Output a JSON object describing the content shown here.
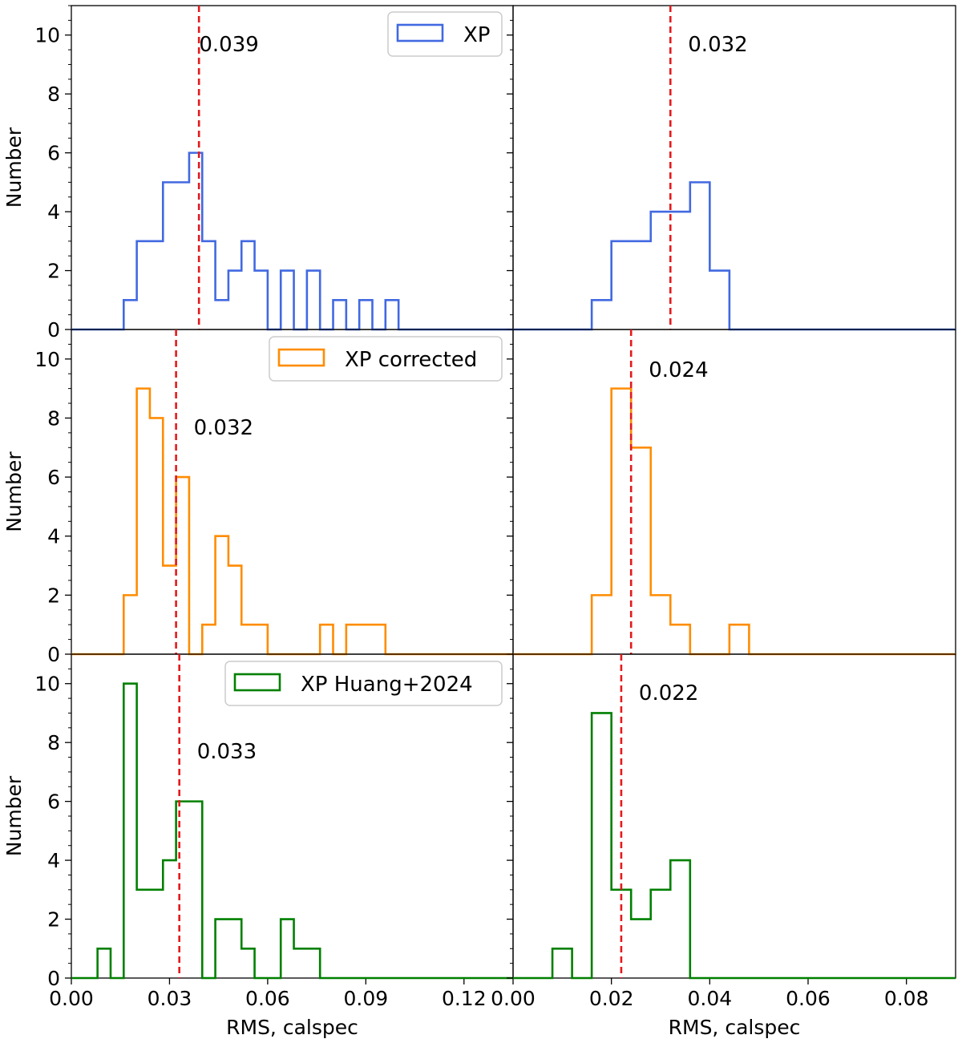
{
  "chart_data": [
    {
      "type": "histogram",
      "panel": "top-left",
      "ylabel": "Number",
      "xlim": [
        0,
        0.135
      ],
      "ylim": [
        0,
        11
      ],
      "color": "#4169e1",
      "legend": "XP",
      "legend_position": "top-right",
      "median": 0.039,
      "median_label": "0.039",
      "bin_width": 0.004,
      "bins": [
        {
          "x": 0.016,
          "count": 1
        },
        {
          "x": 0.02,
          "count": 3
        },
        {
          "x": 0.024,
          "count": 3
        },
        {
          "x": 0.028,
          "count": 5
        },
        {
          "x": 0.032,
          "count": 5
        },
        {
          "x": 0.036,
          "count": 6
        },
        {
          "x": 0.04,
          "count": 3
        },
        {
          "x": 0.044,
          "count": 1
        },
        {
          "x": 0.048,
          "count": 2
        },
        {
          "x": 0.052,
          "count": 3
        },
        {
          "x": 0.056,
          "count": 2
        },
        {
          "x": 0.06,
          "count": 0
        },
        {
          "x": 0.064,
          "count": 2
        },
        {
          "x": 0.068,
          "count": 0
        },
        {
          "x": 0.072,
          "count": 2
        },
        {
          "x": 0.076,
          "count": 0
        },
        {
          "x": 0.08,
          "count": 1
        },
        {
          "x": 0.084,
          "count": 0
        },
        {
          "x": 0.088,
          "count": 1
        },
        {
          "x": 0.092,
          "count": 0
        },
        {
          "x": 0.096,
          "count": 1
        }
      ]
    },
    {
      "type": "histogram",
      "panel": "top-right",
      "xlim": [
        0,
        0.09
      ],
      "ylim": [
        0,
        11
      ],
      "color": "#4169e1",
      "median": 0.032,
      "median_label": "0.032",
      "bin_width": 0.004,
      "bins": [
        {
          "x": 0.016,
          "count": 1
        },
        {
          "x": 0.02,
          "count": 3
        },
        {
          "x": 0.024,
          "count": 3
        },
        {
          "x": 0.028,
          "count": 4
        },
        {
          "x": 0.032,
          "count": 4
        },
        {
          "x": 0.036,
          "count": 5
        },
        {
          "x": 0.04,
          "count": 2
        }
      ]
    },
    {
      "type": "histogram",
      "panel": "middle-left",
      "ylabel": "Number",
      "xlim": [
        0,
        0.135
      ],
      "ylim": [
        0,
        11
      ],
      "color": "#ff8c00",
      "legend": "XP corrected",
      "legend_position": "top-right",
      "median": 0.032,
      "median_label": "0.032",
      "bin_width": 0.004,
      "bins": [
        {
          "x": 0.016,
          "count": 2
        },
        {
          "x": 0.02,
          "count": 9
        },
        {
          "x": 0.024,
          "count": 8
        },
        {
          "x": 0.028,
          "count": 3
        },
        {
          "x": 0.032,
          "count": 6
        },
        {
          "x": 0.036,
          "count": 0
        },
        {
          "x": 0.04,
          "count": 1
        },
        {
          "x": 0.044,
          "count": 4
        },
        {
          "x": 0.048,
          "count": 3
        },
        {
          "x": 0.052,
          "count": 1
        },
        {
          "x": 0.056,
          "count": 1
        },
        {
          "x": 0.06,
          "count": 0
        },
        {
          "x": 0.064,
          "count": 0
        },
        {
          "x": 0.068,
          "count": 0
        },
        {
          "x": 0.072,
          "count": 0
        },
        {
          "x": 0.076,
          "count": 1
        },
        {
          "x": 0.08,
          "count": 0
        },
        {
          "x": 0.084,
          "count": 1
        },
        {
          "x": 0.088,
          "count": 1
        },
        {
          "x": 0.092,
          "count": 1
        }
      ]
    },
    {
      "type": "histogram",
      "panel": "middle-right",
      "xlim": [
        0,
        0.09
      ],
      "ylim": [
        0,
        11
      ],
      "color": "#ff8c00",
      "median": 0.024,
      "median_label": "0.024",
      "bin_width": 0.004,
      "bins": [
        {
          "x": 0.016,
          "count": 2
        },
        {
          "x": 0.02,
          "count": 9
        },
        {
          "x": 0.024,
          "count": 7
        },
        {
          "x": 0.028,
          "count": 2
        },
        {
          "x": 0.032,
          "count": 1
        },
        {
          "x": 0.036,
          "count": 0
        },
        {
          "x": 0.04,
          "count": 0
        },
        {
          "x": 0.044,
          "count": 1
        }
      ]
    },
    {
      "type": "histogram",
      "panel": "bottom-left",
      "ylabel": "Number",
      "xlabel": "RMS, calspec",
      "xlim": [
        0,
        0.135
      ],
      "ylim": [
        0,
        11
      ],
      "xticks": [
        "0.00",
        "0.03",
        "0.06",
        "0.09",
        "0.12"
      ],
      "color": "#008000",
      "legend": "XP Huang+2024",
      "legend_position": "top-right",
      "median": 0.033,
      "median_label": "0.033",
      "bin_width": 0.004,
      "bins": [
        {
          "x": 0.008,
          "count": 1
        },
        {
          "x": 0.012,
          "count": 0
        },
        {
          "x": 0.016,
          "count": 10
        },
        {
          "x": 0.02,
          "count": 3
        },
        {
          "x": 0.024,
          "count": 3
        },
        {
          "x": 0.028,
          "count": 4
        },
        {
          "x": 0.032,
          "count": 6
        },
        {
          "x": 0.036,
          "count": 6
        },
        {
          "x": 0.04,
          "count": 0
        },
        {
          "x": 0.044,
          "count": 2
        },
        {
          "x": 0.048,
          "count": 2
        },
        {
          "x": 0.052,
          "count": 1
        },
        {
          "x": 0.056,
          "count": 0
        },
        {
          "x": 0.06,
          "count": 0
        },
        {
          "x": 0.064,
          "count": 2
        },
        {
          "x": 0.068,
          "count": 1
        },
        {
          "x": 0.072,
          "count": 1
        }
      ]
    },
    {
      "type": "histogram",
      "panel": "bottom-right",
      "xlabel": "RMS, calspec",
      "xlim": [
        0,
        0.09
      ],
      "ylim": [
        0,
        11
      ],
      "xticks": [
        "0.00",
        "0.02",
        "0.04",
        "0.06",
        "0.08"
      ],
      "color": "#008000",
      "median": 0.022,
      "median_label": "0.022",
      "bin_width": 0.004,
      "bins": [
        {
          "x": 0.008,
          "count": 1
        },
        {
          "x": 0.012,
          "count": 0
        },
        {
          "x": 0.016,
          "count": 9
        },
        {
          "x": 0.02,
          "count": 3
        },
        {
          "x": 0.024,
          "count": 2
        },
        {
          "x": 0.028,
          "count": 3
        },
        {
          "x": 0.032,
          "count": 4
        }
      ]
    }
  ],
  "y_ticks": [
    "0",
    "2",
    "4",
    "6",
    "8",
    "10"
  ]
}
